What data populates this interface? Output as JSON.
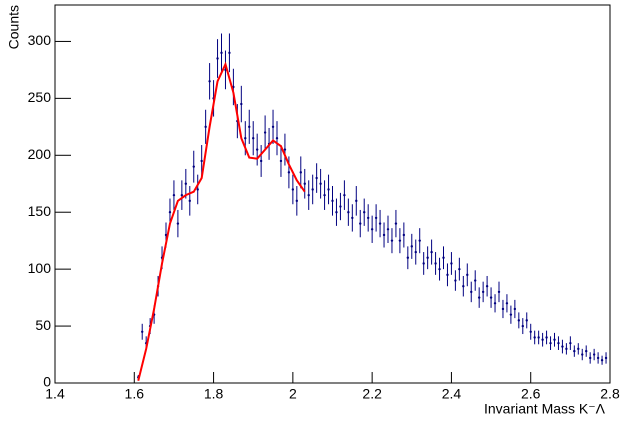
{
  "chart_data": {
    "type": "errorbar",
    "xlabel": "Invariant Mass K⁻Λ",
    "ylabel": "Counts",
    "xlim": [
      1.4,
      2.8
    ],
    "ylim": [
      0,
      332
    ],
    "xticks": [
      1.4,
      1.6,
      1.8,
      2,
      2.2,
      2.4,
      2.6,
      2.8
    ],
    "yticks": [
      0,
      50,
      100,
      150,
      200,
      250,
      300
    ],
    "series": [
      {
        "color": "#000080",
        "x": [
          1.61,
          1.62,
          1.63,
          1.64,
          1.65,
          1.66,
          1.67,
          1.68,
          1.69,
          1.7,
          1.71,
          1.72,
          1.73,
          1.74,
          1.75,
          1.76,
          1.77,
          1.78,
          1.79,
          1.8,
          1.81,
          1.82,
          1.83,
          1.84,
          1.85,
          1.86,
          1.87,
          1.88,
          1.89,
          1.9,
          1.91,
          1.92,
          1.93,
          1.94,
          1.95,
          1.96,
          1.97,
          1.98,
          1.99,
          2.0,
          2.01,
          2.02,
          2.03,
          2.04,
          2.05,
          2.06,
          2.07,
          2.08,
          2.09,
          2.1,
          2.11,
          2.12,
          2.13,
          2.14,
          2.15,
          2.16,
          2.17,
          2.18,
          2.19,
          2.2,
          2.21,
          2.22,
          2.23,
          2.24,
          2.25,
          2.26,
          2.27,
          2.28,
          2.29,
          2.3,
          2.31,
          2.32,
          2.33,
          2.34,
          2.35,
          2.36,
          2.37,
          2.38,
          2.39,
          2.4,
          2.41,
          2.42,
          2.43,
          2.44,
          2.45,
          2.46,
          2.47,
          2.48,
          2.49,
          2.5,
          2.51,
          2.52,
          2.53,
          2.54,
          2.55,
          2.56,
          2.57,
          2.58,
          2.59,
          2.6,
          2.61,
          2.62,
          2.63,
          2.64,
          2.65,
          2.66,
          2.67,
          2.68,
          2.69,
          2.7,
          2.71,
          2.72,
          2.73,
          2.74,
          2.75,
          2.76,
          2.77,
          2.78,
          2.79
        ],
        "values": [
          5,
          45,
          35,
          50,
          60,
          85,
          110,
          130,
          150,
          165,
          140,
          165,
          175,
          160,
          190,
          170,
          195,
          225,
          265,
          250,
          285,
          290,
          275,
          290,
          260,
          230,
          245,
          215,
          225,
          215,
          205,
          195,
          220,
          210,
          225,
          215,
          195,
          205,
          185,
          170,
          160,
          185,
          175,
          165,
          170,
          180,
          175,
          165,
          170,
          160,
          150,
          155,
          165,
          150,
          145,
          160,
          140,
          150,
          145,
          135,
          145,
          140,
          130,
          135,
          125,
          140,
          125,
          130,
          110,
          120,
          115,
          125,
          105,
          110,
          115,
          105,
          100,
          110,
          95,
          105,
          90,
          100,
          85,
          95,
          80,
          90,
          75,
          80,
          85,
          75,
          70,
          80,
          65,
          70,
          60,
          65,
          55,
          50,
          55,
          45,
          40,
          40,
          38,
          40,
          35,
          38,
          35,
          32,
          30,
          35,
          28,
          30,
          25,
          28,
          22,
          25,
          22,
          20,
          22
        ],
        "errors": [
          2,
          7,
          6,
          7,
          8,
          9,
          10,
          11,
          12,
          13,
          12,
          13,
          13,
          13,
          14,
          13,
          14,
          15,
          16,
          16,
          17,
          17,
          17,
          17,
          16,
          15,
          16,
          15,
          15,
          15,
          14,
          14,
          15,
          14,
          15,
          15,
          14,
          14,
          14,
          13,
          13,
          14,
          13,
          13,
          13,
          13,
          13,
          13,
          13,
          13,
          12,
          12,
          13,
          12,
          12,
          13,
          12,
          12,
          12,
          12,
          12,
          12,
          11,
          12,
          11,
          12,
          11,
          11,
          10,
          11,
          11,
          11,
          10,
          10,
          11,
          10,
          10,
          10,
          10,
          10,
          9,
          10,
          9,
          10,
          9,
          9,
          9,
          9,
          9,
          9,
          8,
          9,
          8,
          8,
          8,
          8,
          7,
          7,
          7,
          7,
          6,
          6,
          6,
          6,
          6,
          6,
          6,
          6,
          5,
          6,
          5,
          5,
          5,
          5,
          5,
          5,
          5,
          4,
          5
        ]
      },
      {
        "type": "line",
        "color": "#ff0000",
        "x": [
          1.61,
          1.63,
          1.65,
          1.67,
          1.69,
          1.71,
          1.73,
          1.75,
          1.77,
          1.79,
          1.81,
          1.83,
          1.85,
          1.87,
          1.89,
          1.91,
          1.93,
          1.95,
          1.97,
          1.99,
          2.01,
          2.03
        ],
        "values": [
          2,
          30,
          65,
          105,
          140,
          160,
          165,
          168,
          180,
          225,
          265,
          280,
          255,
          215,
          198,
          197,
          205,
          213,
          208,
          192,
          178,
          168
        ]
      }
    ]
  }
}
